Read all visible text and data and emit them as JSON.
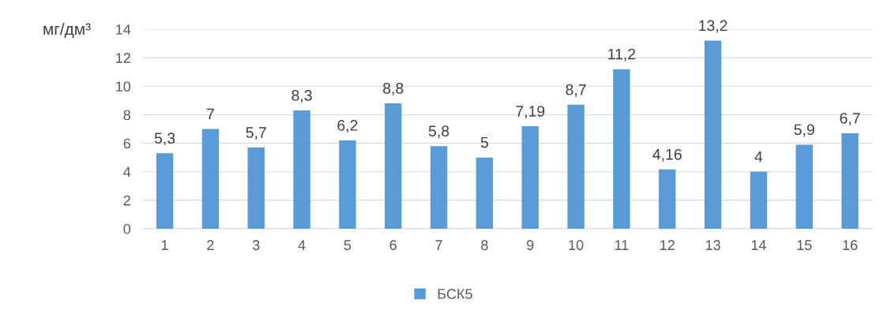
{
  "chart_data": {
    "type": "bar",
    "ylabel": "мг/дм³",
    "categories": [
      "1",
      "2",
      "3",
      "4",
      "5",
      "6",
      "7",
      "8",
      "9",
      "10",
      "11",
      "12",
      "13",
      "14",
      "15",
      "16"
    ],
    "series": [
      {
        "name": "БСК5",
        "color": "#5b9bd5",
        "values": [
          5.3,
          7,
          5.7,
          8.3,
          6.2,
          8.8,
          5.8,
          5,
          7.19,
          8.7,
          11.2,
          4.16,
          13.2,
          4,
          5.9,
          6.7
        ],
        "value_labels": [
          "5,3",
          "7",
          "5,7",
          "8,3",
          "6,2",
          "8,8",
          "5,8",
          "5",
          "7,19",
          "8,7",
          "11,2",
          "4,16",
          "13,2",
          "4",
          "5,9",
          "6,7"
        ]
      }
    ],
    "ylim": [
      0,
      14
    ],
    "yticks": [
      0,
      2,
      4,
      6,
      8,
      10,
      12,
      14
    ],
    "grid": "y",
    "legend": "bottom"
  }
}
